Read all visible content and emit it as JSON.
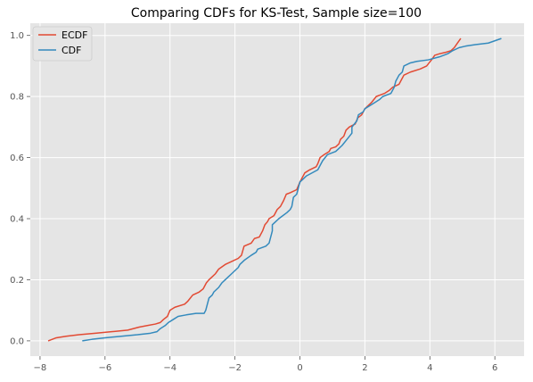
{
  "chart_data": {
    "type": "line",
    "title": "Comparing CDFs for KS-Test, Sample size=100",
    "xlabel": "",
    "ylabel": "",
    "xlim": [
      -8.3,
      6.9
    ],
    "ylim": [
      -0.05,
      1.04
    ],
    "grid": true,
    "background": "#E5E5E5",
    "grid_color": "#FFFFFF",
    "legend_position": "upper left",
    "x_ticks": [
      -8,
      -6,
      -4,
      -2,
      0,
      2,
      4,
      6
    ],
    "x_tick_labels": [
      "−8",
      "−6",
      "−4",
      "−2",
      "0",
      "2",
      "4",
      "6"
    ],
    "y_ticks": [
      0.0,
      0.2,
      0.4,
      0.6,
      0.8,
      1.0
    ],
    "y_tick_labels": [
      "0.0",
      "0.2",
      "0.4",
      "0.6",
      "0.8",
      "1.0"
    ],
    "series": [
      {
        "name": "ECDF",
        "color": "#E24A33",
        "points": [
          [
            -7.75,
            0.0
          ],
          [
            -7.5,
            0.01
          ],
          [
            -7.2,
            0.015
          ],
          [
            -6.8,
            0.02
          ],
          [
            -6.3,
            0.025
          ],
          [
            -5.8,
            0.03
          ],
          [
            -5.3,
            0.035
          ],
          [
            -4.95,
            0.045
          ],
          [
            -4.7,
            0.05
          ],
          [
            -4.45,
            0.055
          ],
          [
            -4.3,
            0.06
          ],
          [
            -4.2,
            0.07
          ],
          [
            -4.08,
            0.08
          ],
          [
            -4.0,
            0.1
          ],
          [
            -3.85,
            0.11
          ],
          [
            -3.55,
            0.12
          ],
          [
            -3.45,
            0.13
          ],
          [
            -3.3,
            0.15
          ],
          [
            -3.1,
            0.16
          ],
          [
            -2.98,
            0.17
          ],
          [
            -2.88,
            0.19
          ],
          [
            -2.8,
            0.2
          ],
          [
            -2.7,
            0.21
          ],
          [
            -2.6,
            0.22
          ],
          [
            -2.5,
            0.235
          ],
          [
            -2.3,
            0.25
          ],
          [
            -2.1,
            0.26
          ],
          [
            -1.9,
            0.27
          ],
          [
            -1.8,
            0.28
          ],
          [
            -1.72,
            0.31
          ],
          [
            -1.5,
            0.32
          ],
          [
            -1.4,
            0.335
          ],
          [
            -1.25,
            0.34
          ],
          [
            -1.15,
            0.36
          ],
          [
            -1.08,
            0.38
          ],
          [
            -1.0,
            0.39
          ],
          [
            -0.95,
            0.4
          ],
          [
            -0.8,
            0.41
          ],
          [
            -0.7,
            0.43
          ],
          [
            -0.6,
            0.44
          ],
          [
            -0.5,
            0.46
          ],
          [
            -0.42,
            0.48
          ],
          [
            -0.3,
            0.485
          ],
          [
            -0.1,
            0.495
          ],
          [
            0.0,
            0.52
          ],
          [
            0.05,
            0.53
          ],
          [
            0.15,
            0.55
          ],
          [
            0.3,
            0.56
          ],
          [
            0.5,
            0.57
          ],
          [
            0.55,
            0.58
          ],
          [
            0.62,
            0.6
          ],
          [
            0.75,
            0.61
          ],
          [
            0.9,
            0.62
          ],
          [
            0.95,
            0.63
          ],
          [
            1.1,
            0.635
          ],
          [
            1.2,
            0.645
          ],
          [
            1.25,
            0.66
          ],
          [
            1.35,
            0.67
          ],
          [
            1.42,
            0.69
          ],
          [
            1.52,
            0.7
          ],
          [
            1.7,
            0.71
          ],
          [
            1.78,
            0.73
          ],
          [
            1.9,
            0.74
          ],
          [
            2.0,
            0.76
          ],
          [
            2.2,
            0.78
          ],
          [
            2.35,
            0.8
          ],
          [
            2.6,
            0.81
          ],
          [
            2.75,
            0.82
          ],
          [
            2.85,
            0.83
          ],
          [
            3.05,
            0.84
          ],
          [
            3.15,
            0.86
          ],
          [
            3.2,
            0.87
          ],
          [
            3.4,
            0.88
          ],
          [
            3.7,
            0.89
          ],
          [
            3.9,
            0.9
          ],
          [
            4.05,
            0.92
          ],
          [
            4.15,
            0.935
          ],
          [
            4.3,
            0.94
          ],
          [
            4.5,
            0.945
          ],
          [
            4.65,
            0.95
          ],
          [
            4.75,
            0.96
          ],
          [
            4.85,
            0.975
          ],
          [
            4.95,
            0.99
          ]
        ]
      },
      {
        "name": "CDF",
        "color": "#348ABD",
        "points": [
          [
            -6.7,
            0.0
          ],
          [
            -6.4,
            0.005
          ],
          [
            -6.0,
            0.01
          ],
          [
            -5.5,
            0.015
          ],
          [
            -5.0,
            0.02
          ],
          [
            -4.6,
            0.025
          ],
          [
            -4.4,
            0.03
          ],
          [
            -4.3,
            0.04
          ],
          [
            -4.15,
            0.05
          ],
          [
            -4.05,
            0.06
          ],
          [
            -3.9,
            0.07
          ],
          [
            -3.75,
            0.08
          ],
          [
            -3.5,
            0.085
          ],
          [
            -3.2,
            0.09
          ],
          [
            -2.95,
            0.09
          ],
          [
            -2.9,
            0.1
          ],
          [
            -2.85,
            0.12
          ],
          [
            -2.8,
            0.14
          ],
          [
            -2.7,
            0.15
          ],
          [
            -2.65,
            0.16
          ],
          [
            -2.5,
            0.175
          ],
          [
            -2.4,
            0.19
          ],
          [
            -2.3,
            0.2
          ],
          [
            -2.1,
            0.22
          ],
          [
            -1.9,
            0.24
          ],
          [
            -1.85,
            0.25
          ],
          [
            -1.7,
            0.265
          ],
          [
            -1.5,
            0.28
          ],
          [
            -1.35,
            0.29
          ],
          [
            -1.3,
            0.3
          ],
          [
            -1.05,
            0.31
          ],
          [
            -0.95,
            0.32
          ],
          [
            -0.9,
            0.34
          ],
          [
            -0.85,
            0.36
          ],
          [
            -0.85,
            0.38
          ],
          [
            -0.75,
            0.39
          ],
          [
            -0.65,
            0.4
          ],
          [
            -0.4,
            0.42
          ],
          [
            -0.3,
            0.43
          ],
          [
            -0.25,
            0.44
          ],
          [
            -0.2,
            0.47
          ],
          [
            -0.1,
            0.48
          ],
          [
            -0.05,
            0.5
          ],
          [
            0.0,
            0.52
          ],
          [
            0.1,
            0.53
          ],
          [
            0.2,
            0.54
          ],
          [
            0.55,
            0.56
          ],
          [
            0.65,
            0.58
          ],
          [
            0.7,
            0.59
          ],
          [
            0.85,
            0.61
          ],
          [
            1.1,
            0.62
          ],
          [
            1.2,
            0.63
          ],
          [
            1.3,
            0.64
          ],
          [
            1.45,
            0.66
          ],
          [
            1.6,
            0.68
          ],
          [
            1.6,
            0.7
          ],
          [
            1.75,
            0.72
          ],
          [
            1.8,
            0.74
          ],
          [
            1.95,
            0.75
          ],
          [
            2.0,
            0.76
          ],
          [
            2.3,
            0.78
          ],
          [
            2.45,
            0.79
          ],
          [
            2.55,
            0.8
          ],
          [
            2.8,
            0.81
          ],
          [
            2.85,
            0.82
          ],
          [
            2.9,
            0.83
          ],
          [
            2.95,
            0.85
          ],
          [
            3.05,
            0.87
          ],
          [
            3.15,
            0.88
          ],
          [
            3.2,
            0.9
          ],
          [
            3.4,
            0.91
          ],
          [
            3.6,
            0.915
          ],
          [
            3.95,
            0.92
          ],
          [
            4.3,
            0.93
          ],
          [
            4.55,
            0.94
          ],
          [
            4.7,
            0.95
          ],
          [
            4.9,
            0.96
          ],
          [
            5.1,
            0.965
          ],
          [
            5.4,
            0.97
          ],
          [
            5.8,
            0.975
          ],
          [
            6.2,
            0.99
          ]
        ]
      }
    ]
  }
}
